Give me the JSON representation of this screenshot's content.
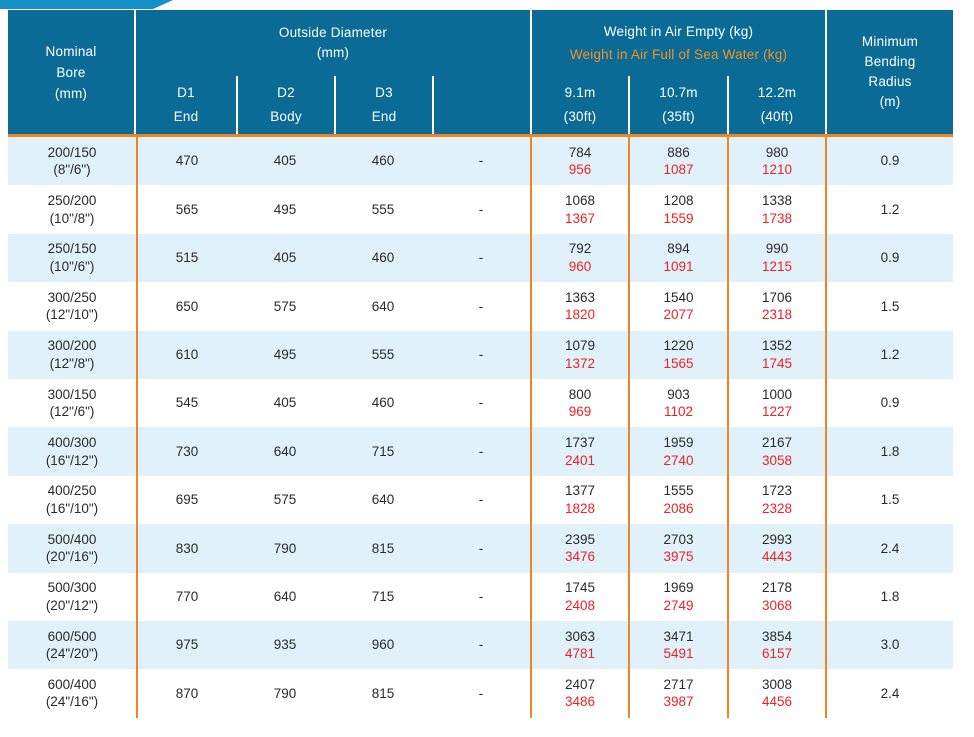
{
  "header": {
    "nominal_bore": [
      "Nominal",
      "Bore",
      "(mm)"
    ],
    "outside_diameter": {
      "title": "Outside Diameter",
      "unit": "(mm)"
    },
    "od_subcols": [
      {
        "id": "D1",
        "part": "End"
      },
      {
        "id": "D2",
        "part": "Body"
      },
      {
        "id": "D3",
        "part": "End"
      },
      {
        "id": "",
        "part": ""
      }
    ],
    "weight": {
      "empty_title": "Weight in Air Empty (kg)",
      "full_title": "Weight in Air Full of Sea Water (kg)"
    },
    "weight_subcols": [
      {
        "length": "9.1m",
        "feet": "(30ft)"
      },
      {
        "length": "10.7m",
        "feet": "(35ft)"
      },
      {
        "length": "12.2m",
        "feet": "(40ft)"
      }
    ],
    "bending_radius": [
      "Minimum",
      "Bending",
      "Radius",
      "(m)"
    ]
  },
  "rows": [
    {
      "bore": "200/150",
      "bore_in": "(8\"/6\")",
      "d1": "470",
      "d2": "405",
      "d3": "460",
      "dash": "-",
      "w1e": "784",
      "w1f": "956",
      "w2e": "886",
      "w2f": "1087",
      "w3e": "980",
      "w3f": "1210",
      "radius": "0.9"
    },
    {
      "bore": "250/200",
      "bore_in": "(10\"/8\")",
      "d1": "565",
      "d2": "495",
      "d3": "555",
      "dash": "-",
      "w1e": "1068",
      "w1f": "1367",
      "w2e": "1208",
      "w2f": "1559",
      "w3e": "1338",
      "w3f": "1738",
      "radius": "1.2"
    },
    {
      "bore": "250/150",
      "bore_in": "(10\"/6\")",
      "d1": "515",
      "d2": "405",
      "d3": "460",
      "dash": "-",
      "w1e": "792",
      "w1f": "960",
      "w2e": "894",
      "w2f": "1091",
      "w3e": "990",
      "w3f": "1215",
      "radius": "0.9"
    },
    {
      "bore": "300/250",
      "bore_in": "(12\"/10\")",
      "d1": "650",
      "d2": "575",
      "d3": "640",
      "dash": "-",
      "w1e": "1363",
      "w1f": "1820",
      "w2e": "1540",
      "w2f": "2077",
      "w3e": "1706",
      "w3f": "2318",
      "radius": "1.5"
    },
    {
      "bore": "300/200",
      "bore_in": "(12\"/8\")",
      "d1": "610",
      "d2": "495",
      "d3": "555",
      "dash": "-",
      "w1e": "1079",
      "w1f": "1372",
      "w2e": "1220",
      "w2f": "1565",
      "w3e": "1352",
      "w3f": "1745",
      "radius": "1.2"
    },
    {
      "bore": "300/150",
      "bore_in": "(12\"/6\")",
      "d1": "545",
      "d2": "405",
      "d3": "460",
      "dash": "-",
      "w1e": "800",
      "w1f": "969",
      "w2e": "903",
      "w2f": "1102",
      "w3e": "1000",
      "w3f": "1227",
      "radius": "0.9"
    },
    {
      "bore": "400/300",
      "bore_in": "(16\"/12\")",
      "d1": "730",
      "d2": "640",
      "d3": "715",
      "dash": "-",
      "w1e": "1737",
      "w1f": "2401",
      "w2e": "1959",
      "w2f": "2740",
      "w3e": "2167",
      "w3f": "3058",
      "radius": "1.8"
    },
    {
      "bore": "400/250",
      "bore_in": "(16\"/10\")",
      "d1": "695",
      "d2": "575",
      "d3": "640",
      "dash": "-",
      "w1e": "1377",
      "w1f": "1828",
      "w2e": "1555",
      "w2f": "2086",
      "w3e": "1723",
      "w3f": "2328",
      "radius": "1.5"
    },
    {
      "bore": "500/400",
      "bore_in": "(20\"/16\")",
      "d1": "830",
      "d2": "790",
      "d3": "815",
      "dash": "-",
      "w1e": "2395",
      "w1f": "3476",
      "w2e": "2703",
      "w2f": "3975",
      "w3e": "2993",
      "w3f": "4443",
      "radius": "2.4"
    },
    {
      "bore": "500/300",
      "bore_in": "(20\"/12\")",
      "d1": "770",
      "d2": "640",
      "d3": "715",
      "dash": "-",
      "w1e": "1745",
      "w1f": "2408",
      "w2e": "1969",
      "w2f": "2749",
      "w3e": "2178",
      "w3f": "3068",
      "radius": "1.8"
    },
    {
      "bore": "600/500",
      "bore_in": "(24\"/20\")",
      "d1": "975",
      "d2": "935",
      "d3": "960",
      "dash": "-",
      "w1e": "3063",
      "w1f": "4781",
      "w2e": "3471",
      "w2f": "5491",
      "w3e": "3854",
      "w3f": "6157",
      "radius": "3.0"
    },
    {
      "bore": "600/400",
      "bore_in": "(24\"/16\")",
      "d1": "870",
      "d2": "790",
      "d3": "815",
      "dash": "-",
      "w1e": "2407",
      "w1f": "3486",
      "w2e": "2717",
      "w2f": "3987",
      "w3e": "3008",
      "w3f": "4456",
      "radius": "2.4"
    }
  ],
  "colors": {
    "header_blue": "#0a6b96",
    "ribbon_blue": "#1492c8",
    "orange_line": "#ef8522",
    "orange_text": "#f59120",
    "red": "#ec2227",
    "row_alt": "#e0f1fa",
    "text_dark": "#2b2a29",
    "header_text": "#ffffff"
  }
}
